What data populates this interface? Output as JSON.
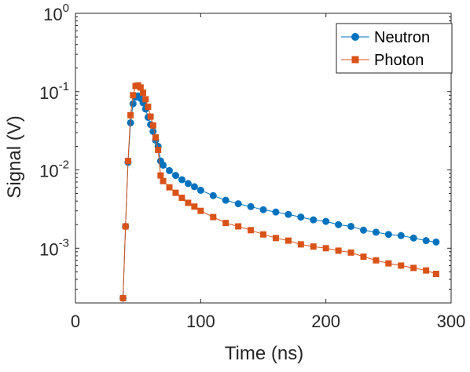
{
  "chart_data": {
    "type": "scatter",
    "title": "",
    "xlabel": "Time (ns)",
    "ylabel": "Signal (V)",
    "xlim": [
      0,
      300
    ],
    "ylim": [
      0.0002,
      1
    ],
    "yscale": "log",
    "grid": false,
    "legend_position": "top-right",
    "x_ticks": [
      {
        "value": 0,
        "label": "0"
      },
      {
        "value": 100,
        "label": "100"
      },
      {
        "value": 200,
        "label": "200"
      },
      {
        "value": 300,
        "label": "300"
      }
    ],
    "y_ticks": [
      {
        "value": 1,
        "base": "10",
        "exp": "0"
      },
      {
        "value": 0.1,
        "base": "10",
        "exp": "-1"
      },
      {
        "value": 0.01,
        "base": "10",
        "exp": "-2"
      },
      {
        "value": 0.001,
        "base": "10",
        "exp": "-3"
      }
    ],
    "series": [
      {
        "name": "Neutron",
        "color": "#0072BD",
        "marker": "circle",
        "points": [
          [
            38,
            0.00023
          ],
          [
            40,
            0.0019
          ],
          [
            42,
            0.0125
          ],
          [
            44,
            0.04
          ],
          [
            46,
            0.07
          ],
          [
            48,
            0.085
          ],
          [
            50,
            0.088
          ],
          [
            52,
            0.082
          ],
          [
            54,
            0.072
          ],
          [
            56,
            0.06
          ],
          [
            58,
            0.047
          ],
          [
            60,
            0.038
          ],
          [
            62,
            0.031
          ],
          [
            64,
            0.024
          ],
          [
            66,
            0.02
          ],
          [
            68,
            0.013
          ],
          [
            70,
            0.0115
          ],
          [
            75,
            0.0098
          ],
          [
            80,
            0.0085
          ],
          [
            85,
            0.0075
          ],
          [
            90,
            0.0067
          ],
          [
            95,
            0.0061
          ],
          [
            100,
            0.0055
          ],
          [
            110,
            0.0047
          ],
          [
            120,
            0.0041
          ],
          [
            130,
            0.0037
          ],
          [
            140,
            0.0034
          ],
          [
            150,
            0.0031
          ],
          [
            160,
            0.0029
          ],
          [
            170,
            0.0027
          ],
          [
            180,
            0.0025
          ],
          [
            190,
            0.0023
          ],
          [
            200,
            0.0022
          ],
          [
            210,
            0.002
          ],
          [
            220,
            0.0019
          ],
          [
            230,
            0.0017
          ],
          [
            240,
            0.0016
          ],
          [
            250,
            0.0015
          ],
          [
            260,
            0.00145
          ],
          [
            270,
            0.00135
          ],
          [
            280,
            0.00125
          ],
          [
            288,
            0.0012
          ]
        ]
      },
      {
        "name": "Photon",
        "color": "#D95319",
        "marker": "square",
        "points": [
          [
            38,
            0.00023
          ],
          [
            40,
            0.0019
          ],
          [
            42,
            0.013
          ],
          [
            44,
            0.05
          ],
          [
            46,
            0.09
          ],
          [
            48,
            0.118
          ],
          [
            50,
            0.12
          ],
          [
            52,
            0.113
          ],
          [
            54,
            0.097
          ],
          [
            56,
            0.08
          ],
          [
            58,
            0.064
          ],
          [
            60,
            0.048
          ],
          [
            62,
            0.037
          ],
          [
            64,
            0.026
          ],
          [
            66,
            0.018
          ],
          [
            68,
            0.0085
          ],
          [
            70,
            0.0072
          ],
          [
            75,
            0.006
          ],
          [
            80,
            0.0051
          ],
          [
            85,
            0.0044
          ],
          [
            90,
            0.0038
          ],
          [
            95,
            0.0034
          ],
          [
            100,
            0.003
          ],
          [
            110,
            0.0025
          ],
          [
            120,
            0.0021
          ],
          [
            130,
            0.0019
          ],
          [
            140,
            0.0017
          ],
          [
            150,
            0.0015
          ],
          [
            160,
            0.00135
          ],
          [
            170,
            0.00125
          ],
          [
            180,
            0.00112
          ],
          [
            190,
            0.00105
          ],
          [
            200,
            0.001
          ],
          [
            210,
            0.00093
          ],
          [
            220,
            0.00088
          ],
          [
            230,
            0.00078
          ],
          [
            240,
            0.0007
          ],
          [
            250,
            0.00064
          ],
          [
            260,
            0.0006
          ],
          [
            270,
            0.00056
          ],
          [
            280,
            0.00052
          ],
          [
            288,
            0.00047
          ]
        ]
      }
    ]
  }
}
